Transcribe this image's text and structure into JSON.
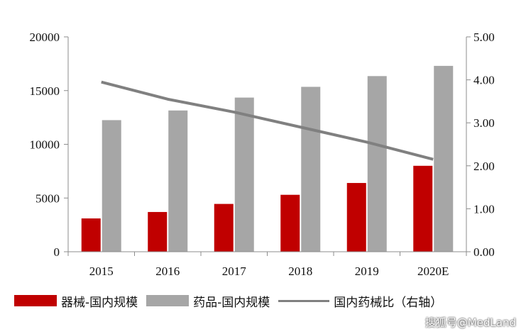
{
  "chart_data": {
    "type": "bar",
    "categories": [
      "2015",
      "2016",
      "2017",
      "2018",
      "2019",
      "2020E"
    ],
    "series": [
      {
        "name": "器械-国内规模",
        "kind": "bar",
        "axis": "left",
        "color": "#c00000",
        "values": [
          3100,
          3700,
          4450,
          5300,
          6400,
          8000
        ]
      },
      {
        "name": "药品-国内规模",
        "kind": "bar",
        "axis": "left",
        "color": "#a6a6a6",
        "values": [
          12250,
          13150,
          14350,
          15350,
          16350,
          17300
        ]
      },
      {
        "name": "国内药械比（右轴）",
        "kind": "line",
        "axis": "right",
        "color": "#808080",
        "values": [
          3.95,
          3.55,
          3.25,
          2.9,
          2.55,
          2.15
        ]
      }
    ],
    "y_left": {
      "min": 0,
      "max": 20000,
      "ticks": [
        "0",
        "5000",
        "10000",
        "15000",
        "20000"
      ]
    },
    "y_right": {
      "min": 0,
      "max": 5,
      "ticks": [
        "0.00",
        "1.00",
        "2.00",
        "3.00",
        "4.00",
        "5.00"
      ]
    },
    "grid": false,
    "legend_position": "bottom",
    "watermark": "搜狐号@MedLand"
  }
}
